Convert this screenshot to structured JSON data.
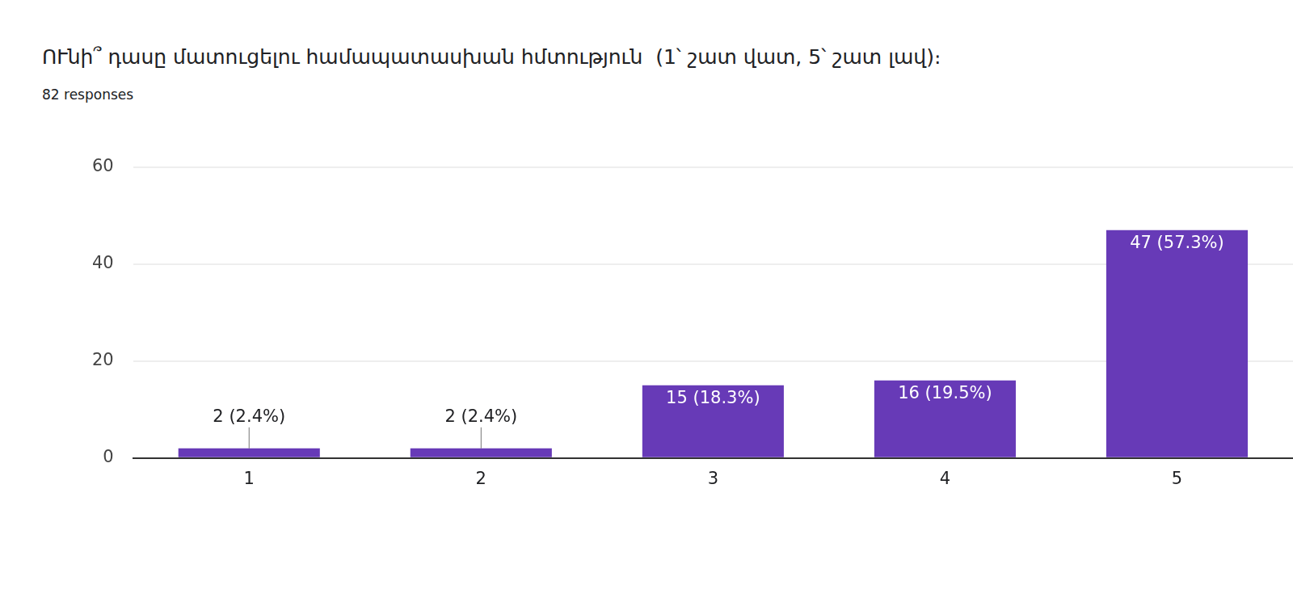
{
  "chart_data": {
    "type": "bar",
    "title": "ՈՒնի՞ դասը մատուցելու համապատասխան հմտություն  (1՝ շատ վատ, 5՝ շատ լավ)։",
    "subtitle": "82 responses",
    "categories": [
      "1",
      "2",
      "3",
      "4",
      "5"
    ],
    "values": [
      2,
      2,
      15,
      16,
      47
    ],
    "value_labels": [
      "2 (2.4%)",
      "2 (2.4%)",
      "15 (18.3%)",
      "16 (19.5%)",
      "47 (57.3%)"
    ],
    "data_labels": true,
    "color": "#673ab7",
    "ylim": [
      0,
      60
    ],
    "yticks": [
      0,
      20,
      40,
      60
    ],
    "grid": true
  }
}
